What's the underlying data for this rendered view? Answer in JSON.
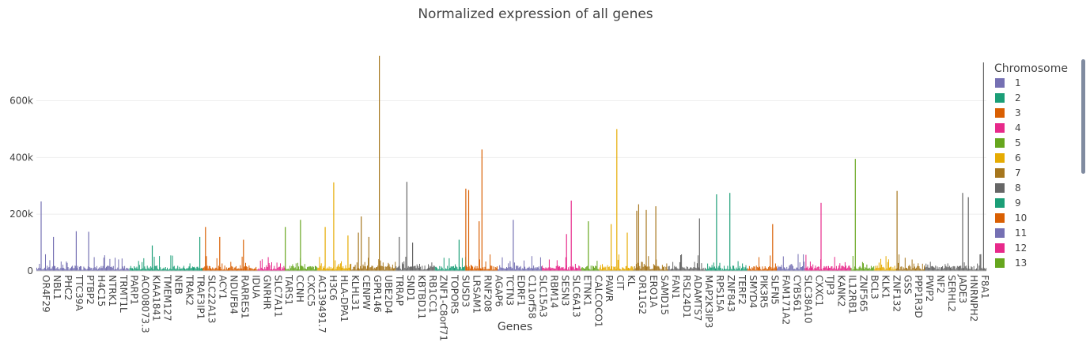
{
  "chart_data": {
    "type": "bar",
    "title": "Normalized expression of all genes",
    "xlabel": "Genes",
    "ylabel": "",
    "ylim": [
      0,
      760000
    ],
    "y_ticks": [
      0,
      200000,
      400000,
      600000
    ],
    "y_tick_labels": [
      "0",
      "200k",
      "400k",
      "600k"
    ],
    "grid": true,
    "legend_title": "Chromosome",
    "legend_position": "right",
    "legend_scrollable": true,
    "x_tick_labels": [
      "OR4F29",
      "NBL1",
      "PHC2",
      "TTC39A",
      "PTBP2",
      "H4C15",
      "NTRK1",
      "TRMT1L",
      "PARP1",
      "AC008073.3",
      "KIAA1841",
      "TMEM127",
      "NEB",
      "TRAK2",
      "TRAF3IP1",
      "SLC22A13",
      "ACY1",
      "NDUFB4",
      "RARRES1",
      "IDUA",
      "GNRHR",
      "SLC7A11",
      "TARS1",
      "CCNH",
      "CXCC5",
      "AC139491.7",
      "H3C6",
      "HLA-DPA1",
      "KLHL31",
      "CENPW",
      "GPR146",
      "UBE2D4",
      "TRRAP",
      "SND1",
      "KBTBD11",
      "RB1CC1",
      "ZNF1-C8orf71",
      "TOPORS",
      "SUSD3",
      "LRSAM1",
      "RNF208",
      "AGAP6",
      "TCTN3",
      "EDRF1",
      "C11orf58",
      "SLC15A3",
      "RBM14",
      "SESN3",
      "SLC6A13",
      "ETNK1",
      "CALCOCO1",
      "PAWR",
      "CIT",
      "KL",
      "OR11G2",
      "ERO1A",
      "SAMD15",
      "FAN1",
      "RSL24D1",
      "ADAMTS7",
      "MAP2K3IP3",
      "RPS15A",
      "ZNF843",
      "TERF2",
      "SMYD4",
      "PIK3R5",
      "SLFN5",
      "FAM171A2",
      "CYB561",
      "SLC38A10",
      "CXXC1",
      "TJP3",
      "KANK2",
      "IL12RB1",
      "ZNF565",
      "BCL3",
      "KLK1",
      "ZNF132",
      "GSS",
      "PPP1R3D",
      "PWP2",
      "NF2",
      "SERHL2",
      "JADE3",
      "HNRNPH2",
      "F8A1"
    ],
    "chromosomes": [
      {
        "name": "1",
        "color": "#7570b3"
      },
      {
        "name": "2",
        "color": "#1b9e77"
      },
      {
        "name": "3",
        "color": "#d95f02"
      },
      {
        "name": "4",
        "color": "#e7298a"
      },
      {
        "name": "5",
        "color": "#66a61e"
      },
      {
        "name": "6",
        "color": "#e6ab02"
      },
      {
        "name": "7",
        "color": "#a6761d"
      },
      {
        "name": "8",
        "color": "#666666"
      },
      {
        "name": "9",
        "color": "#1b9e77"
      },
      {
        "name": "10",
        "color": "#d95f02"
      },
      {
        "name": "11",
        "color": "#7570b3"
      },
      {
        "name": "12",
        "color": "#e7298a"
      },
      {
        "name": "13",
        "color": "#66a61e"
      }
    ],
    "segment_colors": [
      "#7570b3",
      "#1b9e77",
      "#d95f02",
      "#e7298a",
      "#66a61e",
      "#e6ab02",
      "#a6761d",
      "#666666",
      "#1b9e77",
      "#d95f02",
      "#7570b3",
      "#e7298a",
      "#66a61e",
      "#e6ab02",
      "#a6761d",
      "#666666",
      "#1b9e77",
      "#d95f02",
      "#7570b3",
      "#e7298a",
      "#66a61e",
      "#e6ab02",
      "#a6761d",
      "#666666"
    ],
    "segment_bounds": [
      0,
      0.098,
      0.175,
      0.233,
      0.262,
      0.296,
      0.331,
      0.378,
      0.419,
      0.452,
      0.485,
      0.532,
      0.573,
      0.593,
      0.628,
      0.665,
      0.704,
      0.748,
      0.779,
      0.809,
      0.857,
      0.882,
      0.905,
      0.935,
      0.947
    ],
    "peaks": [
      {
        "position": 0.005,
        "value": 245000
      },
      {
        "position": 0.018,
        "value": 120000
      },
      {
        "position": 0.042,
        "value": 140000
      },
      {
        "position": 0.055,
        "value": 138000
      },
      {
        "position": 0.122,
        "value": 90000
      },
      {
        "position": 0.172,
        "value": 120000
      },
      {
        "position": 0.178,
        "value": 155000
      },
      {
        "position": 0.193,
        "value": 120000
      },
      {
        "position": 0.218,
        "value": 110000
      },
      {
        "position": 0.262,
        "value": 155000
      },
      {
        "position": 0.278,
        "value": 180000
      },
      {
        "position": 0.304,
        "value": 155000
      },
      {
        "position": 0.313,
        "value": 312000
      },
      {
        "position": 0.328,
        "value": 125000
      },
      {
        "position": 0.339,
        "value": 135000
      },
      {
        "position": 0.342,
        "value": 192000
      },
      {
        "position": 0.35,
        "value": 120000
      },
      {
        "position": 0.361,
        "value": 758000
      },
      {
        "position": 0.382,
        "value": 120000
      },
      {
        "position": 0.39,
        "value": 314000
      },
      {
        "position": 0.396,
        "value": 100000
      },
      {
        "position": 0.445,
        "value": 110000
      },
      {
        "position": 0.452,
        "value": 290000
      },
      {
        "position": 0.455,
        "value": 285000
      },
      {
        "position": 0.466,
        "value": 175000
      },
      {
        "position": 0.469,
        "value": 428000
      },
      {
        "position": 0.502,
        "value": 180000
      },
      {
        "position": 0.558,
        "value": 130000
      },
      {
        "position": 0.563,
        "value": 248000
      },
      {
        "position": 0.581,
        "value": 175000
      },
      {
        "position": 0.605,
        "value": 165000
      },
      {
        "position": 0.611,
        "value": 500000
      },
      {
        "position": 0.622,
        "value": 135000
      },
      {
        "position": 0.632,
        "value": 212000
      },
      {
        "position": 0.634,
        "value": 235000
      },
      {
        "position": 0.642,
        "value": 215000
      },
      {
        "position": 0.652,
        "value": 228000
      },
      {
        "position": 0.698,
        "value": 185000
      },
      {
        "position": 0.716,
        "value": 270000
      },
      {
        "position": 0.73,
        "value": 275000
      },
      {
        "position": 0.775,
        "value": 165000
      },
      {
        "position": 0.826,
        "value": 240000
      },
      {
        "position": 0.862,
        "value": 395000
      },
      {
        "position": 0.906,
        "value": 282000
      },
      {
        "position": 0.975,
        "value": 275000
      },
      {
        "position": 0.981,
        "value": 260000
      },
      {
        "position": 0.997,
        "value": 735000
      }
    ]
  }
}
